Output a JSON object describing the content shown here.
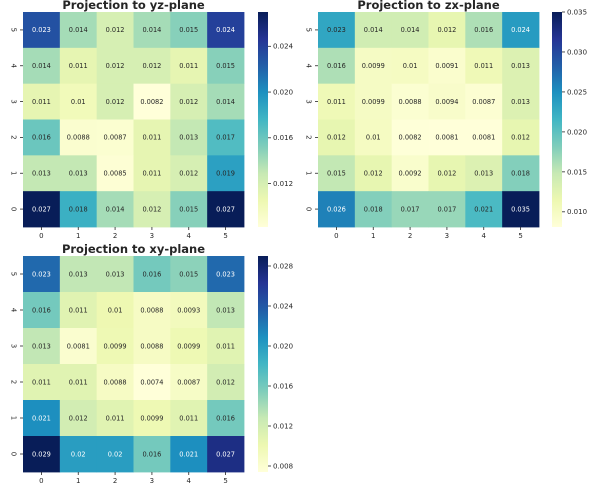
{
  "colormap": [
    "#ffffd9",
    "#edf8b1",
    "#c7e9b4",
    "#7fcdbb",
    "#41b6c4",
    "#1d91c0",
    "#225ea8",
    "#253494",
    "#081d58"
  ],
  "chart_data": [
    {
      "type": "heatmap",
      "title": "Projection to yz-plane",
      "x_ticks": [
        "0",
        "1",
        "2",
        "3",
        "4",
        "5"
      ],
      "y_ticks": [
        "0",
        "1",
        "2",
        "3",
        "4",
        "5"
      ],
      "y_order": "bottom-to-top",
      "rows": [
        {
          "y": "5",
          "values": [
            0.023,
            0.014,
            0.012,
            0.014,
            0.015,
            0.024
          ],
          "labels": [
            "0.023",
            "0.014",
            "0.012",
            "0.014",
            "0.015",
            "0.024"
          ]
        },
        {
          "y": "4",
          "values": [
            0.014,
            0.011,
            0.012,
            0.012,
            0.011,
            0.015
          ],
          "labels": [
            "0.014",
            "0.011",
            "0.012",
            "0.012",
            "0.011",
            "0.015"
          ]
        },
        {
          "y": "3",
          "values": [
            0.011,
            0.01,
            0.012,
            0.0082,
            0.012,
            0.014
          ],
          "labels": [
            "0.011",
            "0.01",
            "0.012",
            "0.0082",
            "0.012",
            "0.014"
          ]
        },
        {
          "y": "2",
          "values": [
            0.016,
            0.0088,
            0.0087,
            0.011,
            0.013,
            0.017
          ],
          "labels": [
            "0.016",
            "0.0088",
            "0.0087",
            "0.011",
            "0.013",
            "0.017"
          ]
        },
        {
          "y": "1",
          "values": [
            0.013,
            0.013,
            0.0085,
            0.011,
            0.012,
            0.019
          ],
          "labels": [
            "0.013",
            "0.013",
            "0.0085",
            "0.011",
            "0.012",
            "0.019"
          ]
        },
        {
          "y": "0",
          "values": [
            0.027,
            0.018,
            0.014,
            0.012,
            0.015,
            0.027
          ],
          "labels": [
            "0.027",
            "0.018",
            "0.014",
            "0.012",
            "0.015",
            "0.027"
          ]
        }
      ],
      "vmin": 0.0082,
      "vmax": 0.027,
      "colorbar_ticks": [
        "0.012",
        "0.016",
        "0.020",
        "0.024"
      ]
    },
    {
      "type": "heatmap",
      "title": "Projection to zx-plane",
      "x_ticks": [
        "0",
        "1",
        "2",
        "3",
        "4",
        "5"
      ],
      "y_ticks": [
        "0",
        "1",
        "2",
        "3",
        "4",
        "5"
      ],
      "y_order": "bottom-to-top",
      "rows": [
        {
          "y": "5",
          "values": [
            0.023,
            0.014,
            0.014,
            0.012,
            0.016,
            0.024
          ],
          "labels": [
            "0.023",
            "0.014",
            "0.014",
            "0.012",
            "0.016",
            "0.024"
          ]
        },
        {
          "y": "4",
          "values": [
            0.016,
            0.0099,
            0.01,
            0.0091,
            0.011,
            0.013
          ],
          "labels": [
            "0.016",
            "0.0099",
            "0.01",
            "0.0091",
            "0.011",
            "0.013"
          ]
        },
        {
          "y": "3",
          "values": [
            0.011,
            0.0099,
            0.0088,
            0.0094,
            0.0087,
            0.013
          ],
          "labels": [
            "0.011",
            "0.0099",
            "0.0088",
            "0.0094",
            "0.0087",
            "0.013"
          ]
        },
        {
          "y": "2",
          "values": [
            0.012,
            0.01,
            0.0082,
            0.0081,
            0.0081,
            0.012
          ],
          "labels": [
            "0.012",
            "0.01",
            "0.0082",
            "0.0081",
            "0.0081",
            "0.012"
          ]
        },
        {
          "y": "1",
          "values": [
            0.015,
            0.012,
            0.0092,
            0.012,
            0.013,
            0.018
          ],
          "labels": [
            "0.015",
            "0.012",
            "0.0092",
            "0.012",
            "0.013",
            "0.018"
          ]
        },
        {
          "y": "0",
          "values": [
            0.026,
            0.018,
            0.017,
            0.017,
            0.021,
            0.035
          ],
          "labels": [
            "0.026",
            "0.018",
            "0.017",
            "0.017",
            "0.021",
            "0.035"
          ]
        }
      ],
      "vmin": 0.0081,
      "vmax": 0.035,
      "colorbar_ticks": [
        "0.010",
        "0.015",
        "0.020",
        "0.025",
        "0.030",
        "0.035"
      ]
    },
    {
      "type": "heatmap",
      "title": "Projection to xy-plane",
      "x_ticks": [
        "0",
        "1",
        "2",
        "3",
        "4",
        "5"
      ],
      "y_ticks": [
        "0",
        "1",
        "2",
        "3",
        "4",
        "5"
      ],
      "y_order": "bottom-to-top",
      "rows": [
        {
          "y": "5",
          "values": [
            0.023,
            0.013,
            0.013,
            0.016,
            0.015,
            0.023
          ],
          "labels": [
            "0.023",
            "0.013",
            "0.013",
            "0.016",
            "0.015",
            "0.023"
          ]
        },
        {
          "y": "4",
          "values": [
            0.016,
            0.011,
            0.01,
            0.0088,
            0.0093,
            0.013
          ],
          "labels": [
            "0.016",
            "0.011",
            "0.01",
            "0.0088",
            "0.0093",
            "0.013"
          ]
        },
        {
          "y": "3",
          "values": [
            0.013,
            0.0081,
            0.0099,
            0.0088,
            0.0099,
            0.011
          ],
          "labels": [
            "0.013",
            "0.0081",
            "0.0099",
            "0.0088",
            "0.0099",
            "0.011"
          ]
        },
        {
          "y": "2",
          "values": [
            0.011,
            0.011,
            0.0088,
            0.0074,
            0.0087,
            0.012
          ],
          "labels": [
            "0.011",
            "0.011",
            "0.0088",
            "0.0074",
            "0.0087",
            "0.012"
          ]
        },
        {
          "y": "1",
          "values": [
            0.021,
            0.012,
            0.011,
            0.0099,
            0.011,
            0.016
          ],
          "labels": [
            "0.021",
            "0.012",
            "0.011",
            "0.0099",
            "0.011",
            "0.016"
          ]
        },
        {
          "y": "0",
          "values": [
            0.029,
            0.02,
            0.02,
            0.016,
            0.021,
            0.027
          ],
          "labels": [
            "0.029",
            "0.02",
            "0.02",
            "0.016",
            "0.021",
            "0.027"
          ]
        }
      ],
      "vmin": 0.0074,
      "vmax": 0.029,
      "colorbar_ticks": [
        "0.008",
        "0.012",
        "0.016",
        "0.020",
        "0.024",
        "0.028"
      ]
    }
  ]
}
